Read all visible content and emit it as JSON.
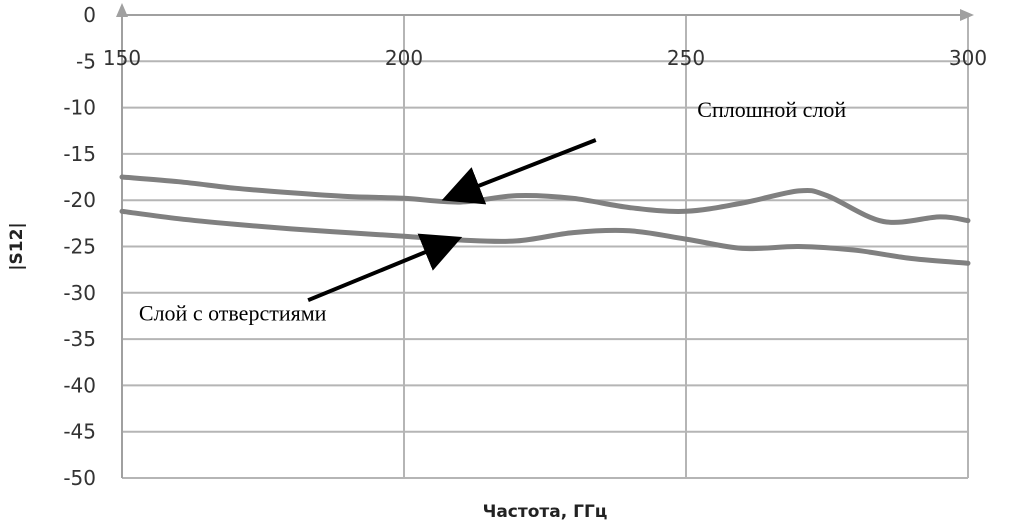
{
  "chart_data": {
    "type": "line",
    "title": "",
    "xlabel": "Частота,  ГГц",
    "ylabel": "|S12|",
    "xlim": [
      150,
      300
    ],
    "ylim": [
      -50,
      0
    ],
    "x_ticks": [
      "150",
      "200",
      "250",
      "300"
    ],
    "y_ticks": [
      "0",
      "-5",
      "-10",
      "-15",
      "-20",
      "-25",
      "-30",
      "-35",
      "-40",
      "-45",
      "-50"
    ],
    "grid": true,
    "legend": "none",
    "series": [
      {
        "x": [
          150,
          160,
          170,
          180,
          190,
          200,
          210,
          220,
          230,
          240,
          250,
          260,
          270,
          275,
          285,
          295,
          300
        ],
        "y": [
          -17.5,
          -18.0,
          -18.7,
          -19.2,
          -19.6,
          -19.8,
          -20.2,
          -19.5,
          -19.8,
          -20.8,
          -21.2,
          -20.3,
          -19.0,
          -19.5,
          -22.3,
          -21.8,
          -22.2
        ],
        "color": "#808080"
      },
      {
        "x": [
          150,
          160,
          170,
          180,
          190,
          200,
          210,
          220,
          230,
          240,
          250,
          260,
          270,
          280,
          290,
          300
        ],
        "y": [
          -21.2,
          -22.0,
          -22.6,
          -23.1,
          -23.5,
          -23.9,
          -24.3,
          -24.4,
          -23.5,
          -23.3,
          -24.2,
          -25.2,
          -25.0,
          -25.4,
          -26.3,
          -26.8
        ],
        "color": "#808080"
      }
    ],
    "annotations": [
      {
        "text": "Сплошной слой",
        "text_at": [
          252,
          -11
        ],
        "arrow_from": [
          234,
          -13.5
        ],
        "arrow_to": [
          208,
          -19.7
        ]
      },
      {
        "text": "Слой с отверстиями",
        "text_at": [
          153,
          -33
        ],
        "arrow_from": [
          183,
          -30.8
        ],
        "arrow_to": [
          209,
          -24.3
        ]
      }
    ]
  }
}
